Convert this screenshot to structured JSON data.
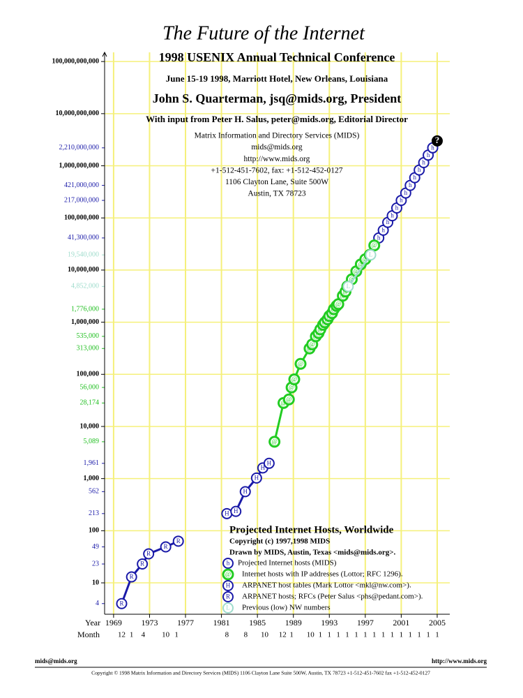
{
  "chart_data": {
    "type": "line",
    "log_y": true,
    "grid": true,
    "grid_color": "#f5f07a",
    "title": "The Future of the Internet",
    "header_lines": [
      "1998 USENIX Annual Technical Conference",
      "June 15-19 1998, Marriott Hotel, New Orleans, Louisiana",
      "John S. Quarterman, jsq@mids.org, President",
      "With input from Peter H. Salus, peter@mids.org, Editorial Director"
    ],
    "address_lines": [
      "Matrix Information and Directory Services (MIDS)",
      "mids@mids.org",
      "http://www.mids.org",
      "+1-512-451-7602, fax: +1-512-452-0127",
      "1106 Clayton Lane, Suite 500W",
      "Austin, TX 78723"
    ],
    "legend_title": "Projected Internet Hosts, Worldwide",
    "legend_lines": [
      "Copyright (c) 1997,1998 MIDS",
      "Drawn by MIDS, Austin, Texas <mids@mids.org>."
    ],
    "xlabel": "Year",
    "month_label": "Month",
    "xlim": [
      1968,
      2006.4
    ],
    "xticks": [
      1969,
      1973,
      1977,
      1981,
      1985,
      1989,
      1993,
      1997,
      2001,
      2005
    ],
    "ylim": [
      2.5,
      150000000000
    ],
    "yticks": [
      10,
      100,
      {
        "value": 1000,
        "label": "1,000"
      },
      {
        "value": 10000,
        "label": "10,000"
      },
      {
        "value": 100000,
        "label": "100,000"
      },
      {
        "value": 1000000,
        "label": "1,000,000"
      },
      {
        "value": 10000000,
        "label": "10,000,000"
      },
      {
        "value": 100000000,
        "label": "100,000,000"
      },
      {
        "value": 1000000000,
        "label": "1,000,000,000"
      },
      {
        "value": 10000000000,
        "label": "10,000,000,000"
      },
      {
        "value": 100000000000,
        "label": "100,000,000,000"
      }
    ],
    "ref_ticks": [
      {
        "color": "#1a1aa8",
        "ticks": [
          {
            "value": 2210000000,
            "label": "2,210,000,000"
          },
          {
            "value": 421000000,
            "label": "421,000,000"
          },
          {
            "value": 217000000,
            "label": "217,000,000"
          },
          {
            "value": 41300000,
            "label": "41,300,000"
          },
          {
            "value": 1961,
            "label": "1,961"
          },
          562,
          213,
          49,
          23,
          4
        ]
      },
      {
        "color": "#9fdccc",
        "ticks": [
          {
            "value": 19540000,
            "label": "19,540,000"
          },
          {
            "value": 4852000,
            "label": "4,852,000"
          }
        ]
      },
      {
        "color": "#1fbf1f",
        "ticks": [
          {
            "value": 1776000,
            "label": "1,776,000"
          },
          {
            "value": 535000,
            "label": "535,000"
          },
          {
            "value": 313000,
            "label": "313,000"
          },
          {
            "value": 56000,
            "label": "56,000"
          },
          {
            "value": 28174,
            "label": "28,174"
          },
          {
            "value": 5089,
            "label": "5,089"
          }
        ]
      }
    ],
    "months": {
      "x": [
        1969.9,
        1971.0,
        1972.3,
        1974.8,
        1976.0,
        1981.6,
        1983.7,
        1985.8,
        1987.8,
        1988.8,
        1990.9,
        1992,
        1993,
        1994,
        1995,
        1996,
        1997,
        1998,
        1999,
        2000,
        2001,
        2002,
        2003,
        2004,
        2005
      ],
      "labels": [
        "12",
        "1",
        "4",
        "10",
        "1",
        "8",
        "8",
        "10",
        "12",
        "1",
        "10",
        "1",
        "1",
        "1",
        "1",
        "1",
        "1",
        "1",
        "1",
        "1",
        "1",
        "1",
        "1",
        "1",
        "1"
      ]
    },
    "series": [
      {
        "name": "Projected Internet hosts (MIDS)",
        "marker": "h",
        "color": "#1a1aa8",
        "x": [
          1998.5,
          1999.0,
          1999.5,
          2000.0,
          2000.5,
          2001.0,
          2001.5,
          2002.0,
          2002.5,
          2003.0,
          2003.5,
          2004.0,
          2004.5
        ],
        "values": [
          41300000,
          58000000,
          82000000,
          110000000,
          155000000,
          217000000,
          300000000,
          421000000,
          590000000,
          830000000,
          1150000000,
          1600000000,
          2210000000
        ]
      },
      {
        "name": "Internet hosts with IP addresses (Lottor; RFC 1296).",
        "marker": "@",
        "color": "#22cc22",
        "x": [
          1986.9,
          1987.9,
          1988.5,
          1988.8,
          1989.1,
          1989.8,
          1990.8,
          1991.1,
          1991.5,
          1991.8,
          1992.0,
          1992.3,
          1992.5,
          1992.8,
          1993.0,
          1993.3,
          1993.5,
          1993.8,
          1994.0,
          1994.5,
          1994.8,
          1995.0,
          1995.5,
          1996.0,
          1996.5,
          1997.0,
          1997.5,
          1998.0
        ],
        "values": [
          5089,
          28174,
          33000,
          56000,
          80000,
          159000,
          313000,
          376000,
          535000,
          617000,
          727000,
          890000,
          992000,
          1136000,
          1313000,
          1486000,
          1776000,
          2056000,
          2217000,
          3212000,
          3864000,
          4852000,
          6642000,
          9472000,
          12881000,
          16146000,
          19540000,
          29670000
        ]
      },
      {
        "name": "ARPANET host tables (Mark Lottor <mkl@nw.com>).",
        "marker": "H",
        "color": "#1a1aa8",
        "x": [
          1981.6,
          1982.6,
          1983.65,
          1984.9,
          1985.6,
          1986.3
        ],
        "values": [
          213,
          235,
          562,
          1024,
          1600,
          1961
        ]
      },
      {
        "name": "ARPANET hosts; RFCs (Peter Salus <phs@pedant.com>).",
        "marker": "R",
        "color": "#1a1aa8",
        "x": [
          1969.9,
          1971.0,
          1972.2,
          1972.9,
          1974.8,
          1976.2
        ],
        "values": [
          4,
          13,
          23,
          36,
          49,
          63
        ]
      },
      {
        "name": "Previous (low) NW numbers",
        "marker": "L",
        "color": "#9fdccc",
        "x": [
          1995.1,
          1997.6
        ],
        "values": [
          4852000,
          19540000
        ]
      }
    ],
    "annotations": [
      {
        "text": "?",
        "x": 2005,
        "y": 3000000000
      }
    ],
    "footer_left": "mids@mids.org",
    "footer_right": "http://www.mids.org",
    "footer_copyright": "Copyright © 1998 Matrix Information and Directory Services (MIDS) 1106 Clayton Lane Suite 500W, Austin, TX 78723 +1-512-451-7602 fax +1-512-452-0127"
  }
}
